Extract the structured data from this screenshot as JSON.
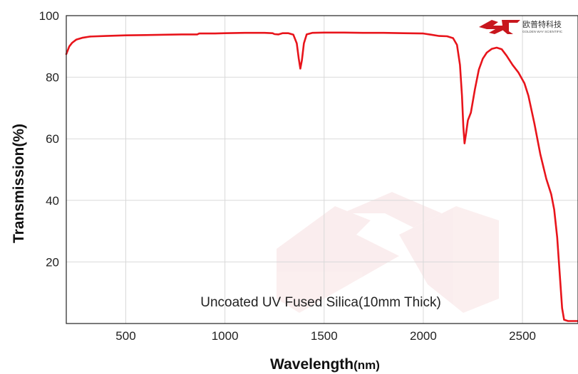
{
  "chart_data": {
    "type": "line",
    "title": "",
    "xlabel": "Wavelength",
    "xlabel_unit": "(nm)",
    "ylabel": "Transmission(%)",
    "xlim": [
      200,
      2780
    ],
    "ylim": [
      0,
      100
    ],
    "x_ticks": [
      500,
      1000,
      1500,
      2000,
      2500
    ],
    "y_ticks": [
      20,
      40,
      60,
      80,
      100
    ],
    "grid": true,
    "annotation": "Uncoated UV Fused Silica(10mm Thick)",
    "series": [
      {
        "color": "#e8141b",
        "points": [
          [
            200,
            87.5
          ],
          [
            215,
            90.0
          ],
          [
            230,
            91.2
          ],
          [
            250,
            92.2
          ],
          [
            280,
            92.8
          ],
          [
            320,
            93.2
          ],
          [
            400,
            93.4
          ],
          [
            500,
            93.6
          ],
          [
            600,
            93.7
          ],
          [
            700,
            93.8
          ],
          [
            800,
            93.9
          ],
          [
            860,
            93.9
          ],
          [
            870,
            94.2
          ],
          [
            950,
            94.2
          ],
          [
            1000,
            94.3
          ],
          [
            1100,
            94.4
          ],
          [
            1200,
            94.4
          ],
          [
            1240,
            94.3
          ],
          [
            1250,
            94.0
          ],
          [
            1270,
            93.9
          ],
          [
            1290,
            94.3
          ],
          [
            1320,
            94.3
          ],
          [
            1345,
            93.8
          ],
          [
            1362,
            91.0
          ],
          [
            1372,
            86.0
          ],
          [
            1380,
            82.8
          ],
          [
            1388,
            85.5
          ],
          [
            1398,
            91.0
          ],
          [
            1412,
            93.9
          ],
          [
            1440,
            94.4
          ],
          [
            1500,
            94.5
          ],
          [
            1600,
            94.5
          ],
          [
            1700,
            94.4
          ],
          [
            1800,
            94.4
          ],
          [
            1900,
            94.3
          ],
          [
            2000,
            94.2
          ],
          [
            2040,
            93.8
          ],
          [
            2080,
            93.4
          ],
          [
            2120,
            93.3
          ],
          [
            2150,
            92.7
          ],
          [
            2170,
            90.5
          ],
          [
            2185,
            84.0
          ],
          [
            2195,
            74.0
          ],
          [
            2202,
            64.0
          ],
          [
            2208,
            58.5
          ],
          [
            2215,
            61.5
          ],
          [
            2225,
            66.0
          ],
          [
            2240,
            68.5
          ],
          [
            2260,
            76.0
          ],
          [
            2280,
            82.5
          ],
          [
            2300,
            86.0
          ],
          [
            2320,
            88.0
          ],
          [
            2345,
            89.2
          ],
          [
            2370,
            89.6
          ],
          [
            2395,
            89.1
          ],
          [
            2420,
            87.0
          ],
          [
            2450,
            84.0
          ],
          [
            2480,
            81.5
          ],
          [
            2510,
            78.0
          ],
          [
            2530,
            74.0
          ],
          [
            2560,
            65.0
          ],
          [
            2590,
            55.0
          ],
          [
            2620,
            47.0
          ],
          [
            2645,
            42.0
          ],
          [
            2660,
            37.0
          ],
          [
            2675,
            28.0
          ],
          [
            2690,
            14.0
          ],
          [
            2700,
            5.0
          ],
          [
            2710,
            1.2
          ],
          [
            2730,
            0.8
          ],
          [
            2780,
            0.8
          ]
        ]
      }
    ]
  },
  "logo": {
    "cn_text": "欧普特科技",
    "en_text": "GOLDEN WAY SCIENTIFIC",
    "color": "#c8161d"
  }
}
